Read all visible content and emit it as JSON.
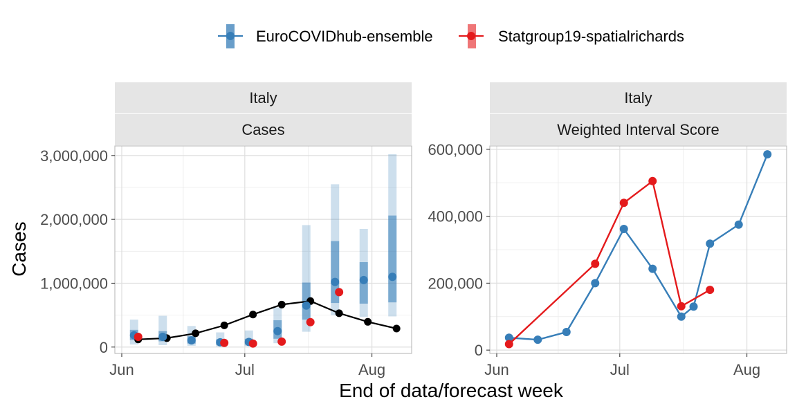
{
  "legend": {
    "items": [
      {
        "label": "EuroCOVIDhub-ensemble",
        "color": "#377EB8"
      },
      {
        "label": "Statgroup19-spatialrichards",
        "color": "#E41A1C"
      }
    ]
  },
  "ylabel": "Cases",
  "xlabel": "End of data/forecast week",
  "chart_data": [
    {
      "type": "line",
      "strip_top": "Italy",
      "strip_bottom": "Cases",
      "x_ticks": [
        "Jun",
        "Jul",
        "Aug"
      ],
      "y_ticks": [
        "0",
        "1,000,000",
        "2,000,000",
        "3,000,000"
      ],
      "ylim": [
        -100000,
        3150000
      ],
      "grid": true,
      "observed": {
        "x": [
          "2021-06-05",
          "2021-06-12",
          "2021-06-19",
          "2021-06-26",
          "2021-07-03",
          "2021-07-10",
          "2021-07-17",
          "2021-07-24",
          "2021-07-31",
          "2021-08-07"
        ],
        "values": [
          120000,
          140000,
          215000,
          340000,
          510000,
          665000,
          720000,
          530000,
          395000,
          290000
        ]
      },
      "series": [
        {
          "name": "EuroCOVIDhub-ensemble",
          "x": [
            "2021-06-04",
            "2021-06-11",
            "2021-06-18",
            "2021-06-25",
            "2021-07-02",
            "2021-07-09",
            "2021-07-16",
            "2021-07-23",
            "2021-07-30",
            "2021-08-06"
          ],
          "values": [
            185000,
            160000,
            105000,
            75000,
            80000,
            250000,
            650000,
            1020000,
            1050000,
            1100000
          ],
          "interval_50": [
            [
              110000,
              270000
            ],
            [
              90000,
              250000
            ],
            [
              55000,
              170000
            ],
            [
              35000,
              120000
            ],
            [
              40000,
              130000
            ],
            [
              130000,
              420000
            ],
            [
              430000,
              1010000
            ],
            [
              690000,
              1660000
            ],
            [
              680000,
              1330000
            ],
            [
              700000,
              2060000
            ]
          ],
          "interval_90": [
            [
              40000,
              430000
            ],
            [
              30000,
              490000
            ],
            [
              20000,
              330000
            ],
            [
              10000,
              230000
            ],
            [
              15000,
              260000
            ],
            [
              60000,
              620000
            ],
            [
              240000,
              1910000
            ],
            [
              500000,
              2550000
            ],
            [
              470000,
              1850000
            ],
            [
              480000,
              3020000
            ]
          ]
        },
        {
          "name": "Statgroup19-spatialrichards",
          "x": [
            "2021-06-05",
            "2021-06-26",
            "2021-07-03",
            "2021-07-10",
            "2021-07-17",
            "2021-07-24"
          ],
          "values": [
            160000,
            65000,
            55000,
            85000,
            390000,
            860000
          ]
        }
      ]
    },
    {
      "type": "line",
      "strip_top": "Italy",
      "strip_bottom": "Weighted Interval Score",
      "x_ticks": [
        "Jun",
        "Jul",
        "Aug"
      ],
      "y_ticks": [
        "0",
        "200,000",
        "400,000",
        "600,000"
      ],
      "ylim": [
        -10000,
        610000
      ],
      "grid": true,
      "series": [
        {
          "name": "EuroCOVIDhub-ensemble",
          "x": [
            "2021-06-04",
            "2021-06-11",
            "2021-06-18",
            "2021-06-25",
            "2021-07-02",
            "2021-07-09",
            "2021-07-16",
            "2021-07-19",
            "2021-07-23",
            "2021-07-30",
            "2021-08-06"
          ],
          "values": [
            37000,
            31000,
            54000,
            200000,
            362000,
            243000,
            100000,
            130000,
            318000,
            375000,
            585000
          ]
        },
        {
          "name": "Statgroup19-spatialrichards",
          "x": [
            "2021-06-04",
            "2021-06-25",
            "2021-07-02",
            "2021-07-09",
            "2021-07-16",
            "2021-07-23"
          ],
          "values": [
            18000,
            258000,
            440000,
            505000,
            131000,
            180000
          ]
        }
      ]
    }
  ]
}
